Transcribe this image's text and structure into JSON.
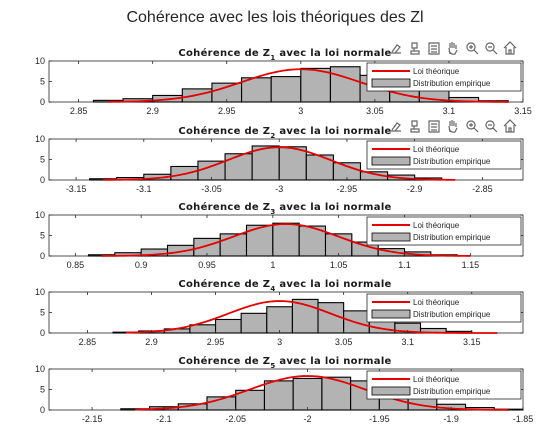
{
  "figure": {
    "title": "Cohérence avec les lois théoriques des Zl"
  },
  "toolbar": {
    "icons": [
      "export-icon",
      "brush-icon",
      "data-tips-icon",
      "pan-icon",
      "zoom-in-icon",
      "zoom-out-icon",
      "home-icon"
    ]
  },
  "colors": {
    "bar_fill": "#b3b3b3",
    "bar_edge": "#000000",
    "curve": "#e60000"
  },
  "chart_data": [
    {
      "type": "bar",
      "title": "Cohérence de Z1 avec la loi normale",
      "title_base": "Cohérence de Z",
      "title_sub": "1",
      "title_rest": " avec la loi normale",
      "xlim": [
        2.83,
        3.15
      ],
      "ylim": [
        0,
        10
      ],
      "xticks": [
        2.85,
        2.9,
        2.95,
        3,
        3.05,
        3.1,
        3.15
      ],
      "xtick_labels": [
        "2.85",
        "2.9",
        "2.95",
        "3",
        "3.05",
        "3.1",
        "3.15"
      ],
      "yticks": [
        0,
        5,
        10
      ],
      "ytick_labels": [
        "0",
        "5",
        "10"
      ],
      "bins_start": 2.86,
      "bin_width": 0.02,
      "values": [
        0.4,
        0.8,
        1.6,
        3.2,
        4.6,
        5.9,
        6.2,
        8.2,
        8.6,
        6.5,
        5.1,
        2.9,
        1.1,
        0.3
      ],
      "curve": {
        "mean": 3.0,
        "sd": 0.04,
        "peak": 8.0,
        "range": [
          2.87,
          3.14
        ]
      },
      "legend": [
        "Loi théorique",
        "Distribution empirique"
      ],
      "legend_position": "top-right",
      "toolbar": true
    },
    {
      "type": "bar",
      "title": "Cohérence de Z2 avec la loi normale",
      "title_base": "Cohérence de Z",
      "title_sub": "2",
      "title_rest": " avec la loi normale",
      "xlim": [
        -3.17,
        -2.82
      ],
      "ylim": [
        0,
        10
      ],
      "xticks": [
        -3.15,
        -3.1,
        -3.05,
        -3,
        -2.95,
        -2.9,
        -2.85
      ],
      "xtick_labels": [
        "-3.15",
        "-3.1",
        "-3.05",
        "-3",
        "-2.95",
        "-2.9",
        "-2.85"
      ],
      "yticks": [
        0,
        5,
        10
      ],
      "ytick_labels": [
        "0",
        "5",
        "10"
      ],
      "bins_start": -3.14,
      "bin_width": 0.02,
      "values": [
        0.3,
        0.6,
        1.4,
        3.3,
        4.6,
        6.4,
        8.3,
        8.1,
        6.1,
        4.2,
        2.0,
        1.2,
        0.5
      ],
      "curve": {
        "mean": -3.0,
        "sd": 0.038,
        "peak": 8.0,
        "range": [
          -3.13,
          -2.87
        ]
      },
      "legend": [
        "Loi théorique",
        "Distribution empirique"
      ],
      "legend_position": "top-right",
      "toolbar": true
    },
    {
      "type": "bar",
      "title": "Cohérence de Z3 avec la loi normale",
      "title_base": "Cohérence de Z",
      "title_sub": "3",
      "title_rest": " avec la loi normale",
      "xlim": [
        0.83,
        1.19
      ],
      "ylim": [
        0,
        10
      ],
      "xticks": [
        0.85,
        0.9,
        0.95,
        1,
        1.05,
        1.1,
        1.15
      ],
      "xtick_labels": [
        "0.85",
        "0.9",
        "0.95",
        "1",
        "1.05",
        "1.1",
        "1.15"
      ],
      "yticks": [
        0,
        5,
        10
      ],
      "ytick_labels": [
        "0",
        "5",
        "10"
      ],
      "bins_start": 0.86,
      "bin_width": 0.02,
      "values": [
        0.3,
        0.8,
        1.7,
        2.6,
        4.3,
        5.4,
        7.5,
        8.0,
        7.3,
        5.4,
        3.4,
        1.8,
        1.0,
        0.3
      ],
      "curve": {
        "mean": 1.01,
        "sd": 0.04,
        "peak": 7.8,
        "range": [
          0.87,
          1.15
        ]
      },
      "legend": [
        "Loi théorique",
        "Distribution empirique"
      ],
      "legend_position": "top-right",
      "toolbar": false
    },
    {
      "type": "bar",
      "title": "Cohérence de Z4 avec la loi normale",
      "title_base": "Cohérence de Z",
      "title_sub": "4",
      "title_rest": " avec la loi normale",
      "xlim": [
        2.82,
        3.19
      ],
      "ylim": [
        0,
        10
      ],
      "xticks": [
        2.85,
        2.9,
        2.95,
        3,
        3.05,
        3.1,
        3.15
      ],
      "xtick_labels": [
        "2.85",
        "2.9",
        "2.95",
        "3",
        "3.05",
        "3.1",
        "3.15"
      ],
      "yticks": [
        0,
        5,
        10
      ],
      "ytick_labels": [
        "0",
        "5",
        "10"
      ],
      "bins_start": 2.87,
      "bin_width": 0.02,
      "values": [
        0.2,
        0.5,
        1.0,
        2.0,
        3.3,
        4.8,
        6.4,
        8.2,
        7.4,
        5.4,
        3.7,
        2.4,
        1.1,
        0.4
      ],
      "curve": {
        "mean": 3.0,
        "sd": 0.04,
        "peak": 7.8,
        "range": [
          2.88,
          3.17
        ]
      },
      "legend": [
        "Loi théorique",
        "Distribution empirique"
      ],
      "legend_position": "top-right",
      "toolbar": false
    },
    {
      "type": "bar",
      "title": "Cohérence de Z5 avec la loi normale",
      "title_base": "Cohérence de Z",
      "title_sub": "5",
      "title_rest": " avec la loi normale",
      "xlim": [
        -2.18,
        -1.85
      ],
      "ylim": [
        0,
        10
      ],
      "xticks": [
        -2.15,
        -2.1,
        -2.05,
        -2,
        -1.95,
        -1.9,
        -1.85
      ],
      "xtick_labels": [
        "-2.15",
        "-2.1",
        "-2.05",
        "-2",
        "-1.95",
        "-1.9",
        "-1.85"
      ],
      "yticks": [
        0,
        5,
        10
      ],
      "ytick_labels": [
        "0",
        "5",
        "10"
      ],
      "bins_start": -2.13,
      "bin_width": 0.02,
      "values": [
        0.3,
        0.8,
        1.5,
        3.2,
        4.8,
        7.1,
        7.7,
        8.0,
        7.1,
        5.0,
        2.8,
        1.4,
        0.6,
        0.2
      ],
      "curve": {
        "mean": -2.0,
        "sd": 0.04,
        "peak": 8.3,
        "range": [
          -2.12,
          -1.86
        ]
      },
      "legend": [
        "Loi théorique",
        "Distribution empirique"
      ],
      "legend_position": "top-right",
      "toolbar": false
    }
  ]
}
